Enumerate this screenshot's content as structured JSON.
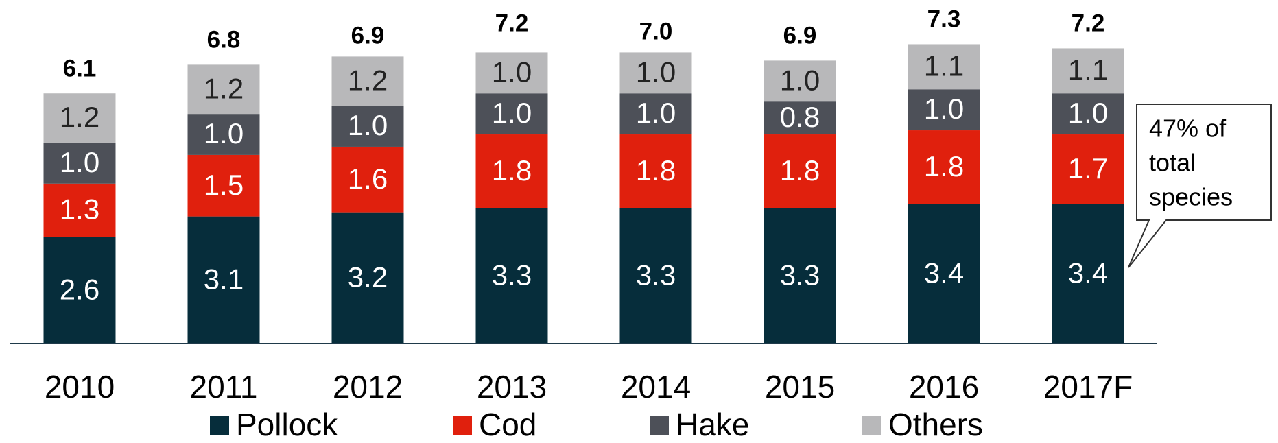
{
  "chart_data": {
    "type": "stacked_bar",
    "categories": [
      "2010",
      "2011",
      "2012",
      "2013",
      "2014",
      "2015",
      "2016",
      "2017F"
    ],
    "series": [
      {
        "name": "Pollock",
        "color": "#062d3b",
        "values": [
          2.6,
          3.1,
          3.2,
          3.3,
          3.3,
          3.3,
          3.4,
          3.4
        ],
        "value_labels": [
          "2.6",
          "3.1",
          "3.2",
          "3.3",
          "3.3",
          "3.3",
          "3.4",
          "3.4"
        ]
      },
      {
        "name": "Cod",
        "color": "#e0200d",
        "values": [
          1.3,
          1.5,
          1.6,
          1.8,
          1.8,
          1.8,
          1.8,
          1.7
        ],
        "value_labels": [
          "1.3",
          "1.5",
          "1.6",
          "1.8",
          "1.8",
          "1.8",
          "1.8",
          "1.7"
        ]
      },
      {
        "name": "Hake",
        "color": "#4d5058",
        "values": [
          1.0,
          1.0,
          1.0,
          1.0,
          1.0,
          0.8,
          1.0,
          1.0
        ],
        "value_labels": [
          "1.0",
          "1.0",
          "1.0",
          "1.0",
          "1.0",
          "0.8",
          "1.0",
          "1.0"
        ]
      },
      {
        "name": "Others",
        "color": "#b8b8ba",
        "values": [
          1.2,
          1.2,
          1.2,
          1.0,
          1.0,
          1.0,
          1.1,
          1.1
        ],
        "value_labels": [
          "1.2",
          "1.2",
          "1.2",
          "1.0",
          "1.0",
          "1.0",
          "1.1",
          "1.1"
        ]
      }
    ],
    "totals": [
      6.1,
      6.8,
      6.9,
      7.2,
      7.0,
      6.9,
      7.3,
      7.2
    ],
    "total_labels": [
      "6.1",
      "6.8",
      "6.9",
      "7.2",
      "7.0",
      "6.9",
      "7.3",
      "7.2"
    ],
    "annotation": [
      "47% of",
      "total",
      "species"
    ]
  }
}
